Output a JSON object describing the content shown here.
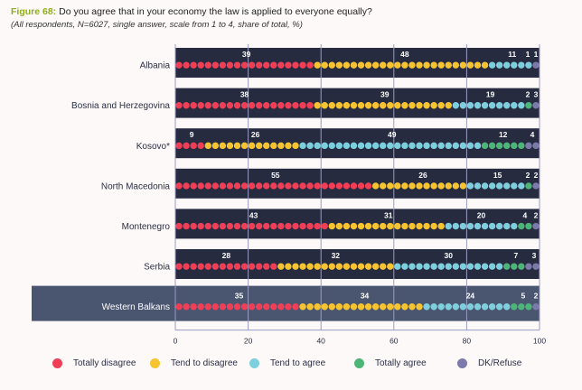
{
  "title": {
    "figure_label": "Figure 68:",
    "text": " Do you agree that in your economy the law is applied to everyone equally?",
    "subtitle": "(All respondents, N=6027, single answer, scale from 1 to 4, share of total, %)"
  },
  "chart_data": {
    "type": "bar",
    "orientation": "horizontal",
    "stacked": true,
    "style": "dotted-bar",
    "title": "Do you agree that in your economy the law is applied to everyone equally?",
    "subtitle": "(All respondents, N=6027, single answer, scale from 1 to 4, share of total, %)",
    "xlabel": "",
    "ylabel": "",
    "xlim": [
      0,
      100
    ],
    "xticks": [
      0,
      20,
      40,
      60,
      80,
      100
    ],
    "grid": true,
    "legend_position": "bottom",
    "categories": [
      "Albania",
      "Bosnia and Herzegovina",
      "Kosovo*",
      "North Macedonia",
      "Montenegro",
      "Serbia",
      "Western Balkans"
    ],
    "highlighted_category": "Western Balkans",
    "series": [
      {
        "name": "Totally disagree",
        "color": "#ef3e56",
        "values": [
          39,
          38,
          9,
          55,
          43,
          28,
          35
        ]
      },
      {
        "name": "Tend to disagree",
        "color": "#f7c431",
        "values": [
          48,
          39,
          26,
          26,
          31,
          32,
          34
        ]
      },
      {
        "name": "Tend to agree",
        "color": "#7dcfdd",
        "values": [
          11,
          19,
          49,
          15,
          20,
          30,
          24
        ]
      },
      {
        "name": "Totally agree",
        "color": "#4cb577",
        "values": [
          1,
          2,
          12,
          2,
          4,
          7,
          5
        ]
      },
      {
        "name": "DK/Refuse",
        "color": "#7c7aaa",
        "values": [
          1,
          3,
          4,
          2,
          2,
          3,
          2
        ]
      }
    ]
  },
  "colors": {
    "bar_background": "#262b40",
    "highlight_background": "#4a5570",
    "label_text": "#ffffff",
    "axis": "#9a9cc2",
    "figure_label": "#8fae1b"
  }
}
